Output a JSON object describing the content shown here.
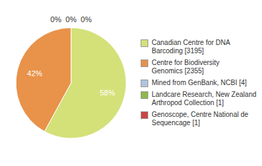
{
  "chart_data": {
    "type": "pie",
    "categories": [
      "Canadian Centre for DNA\nBarcoding [3195]",
      "Centre for Biodiversity\nGenomics [2355]",
      "Mined from GenBank, NCBI [4]",
      "Landcare Research, New Zealand\nArthropod Collection [1]",
      "Genoscope, Centre National de\nSequencage [1]"
    ],
    "values": [
      58,
      42,
      0,
      0,
      0
    ],
    "value_labels": [
      "58%",
      "42%",
      "0%",
      "0%",
      "0%"
    ],
    "colors": [
      "#d4e179",
      "#e8924a",
      "#b0c4de",
      "#8db84a",
      "#cc4444"
    ],
    "data_labels": true,
    "legend": "right"
  }
}
